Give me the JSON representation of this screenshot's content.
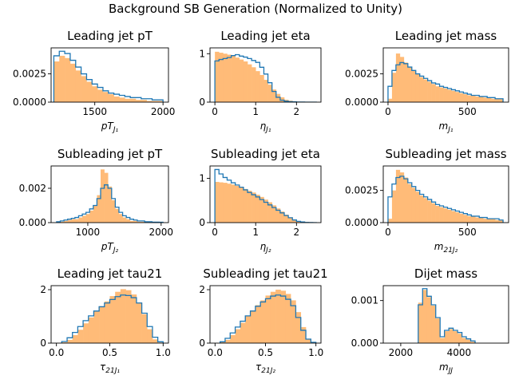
{
  "suptitle": "Background SB Generation (Normalized to Unity)",
  "colors": {
    "step": "#1f77b4",
    "fill": "#ffbb78",
    "axis": "#000000"
  },
  "chart_data": [
    {
      "type": "bar",
      "title": "Leading jet pT",
      "xlabel_base": "pT",
      "xlabel_sub": "J₁",
      "xlim": [
        1180,
        2040
      ],
      "ylim": [
        0,
        0.0048
      ],
      "xticks": [
        1500,
        2000
      ],
      "xtick_labels": [
        "1500",
        "2000"
      ],
      "yticks": [
        0,
        0.0025
      ],
      "ytick_labels": [
        "0.0000",
        "0.0025"
      ],
      "bin_edges": [
        1200,
        1240,
        1280,
        1320,
        1360,
        1400,
        1440,
        1480,
        1520,
        1560,
        1600,
        1640,
        1680,
        1720,
        1760,
        1800,
        1840,
        1880,
        1920,
        1960,
        2000
      ],
      "series": [
        {
          "name": "",
          "style": "step",
          "values": [
            0.0041,
            0.0045,
            0.0043,
            0.0037,
            0.0031,
            0.0025,
            0.002,
            0.0016,
            0.0013,
            0.001,
            0.0008,
            0.0007,
            0.0006,
            0.0005,
            0.0004,
            0.0004,
            0.0003,
            0.0003,
            0.0002,
            0.0002
          ]
        },
        {
          "name": "",
          "style": "fill",
          "values": [
            0.0036,
            0.0041,
            0.0039,
            0.0034,
            0.0028,
            0.0023,
            0.0018,
            0.0014,
            0.0011,
            0.0009,
            0.0007,
            0.0005,
            0.0004,
            0.0003,
            0.0003,
            0.0002,
            0.0002,
            0.0001,
            0.0001,
            0.0001
          ]
        }
      ]
    },
    {
      "type": "bar",
      "title": "Leading jet eta",
      "xlabel_base": "η",
      "xlabel_sub": "J₁",
      "xlim": [
        -0.12,
        2.6
      ],
      "ylim": [
        0,
        1.12
      ],
      "xticks": [
        0,
        1,
        2
      ],
      "xtick_labels": [
        "0",
        "1",
        "2"
      ],
      "yticks": [
        0,
        1
      ],
      "ytick_labels": [
        "0",
        "1"
      ],
      "bin_edges": [
        0,
        0.1,
        0.2,
        0.3,
        0.4,
        0.5,
        0.6,
        0.7,
        0.8,
        0.9,
        1.0,
        1.1,
        1.2,
        1.3,
        1.4,
        1.5,
        1.6,
        1.7,
        1.8,
        1.9,
        2.0,
        2.1,
        2.2,
        2.3,
        2.4,
        2.5
      ],
      "series": [
        {
          "name": "",
          "style": "step",
          "values": [
            0.85,
            0.88,
            0.9,
            0.92,
            0.96,
            0.98,
            0.95,
            0.93,
            0.9,
            0.86,
            0.82,
            0.72,
            0.58,
            0.4,
            0.22,
            0.1,
            0.04,
            0.02,
            0.01,
            0.005,
            0.002,
            0.001,
            0,
            0,
            0
          ]
        },
        {
          "name": "",
          "style": "fill",
          "values": [
            1.04,
            1.02,
            1.0,
            0.98,
            0.96,
            0.92,
            0.88,
            0.84,
            0.78,
            0.72,
            0.64,
            0.56,
            0.46,
            0.36,
            0.26,
            0.17,
            0.1,
            0.05,
            0.03,
            0.01,
            0.005,
            0.002,
            0,
            0,
            0
          ]
        }
      ]
    },
    {
      "type": "bar",
      "title": "Leading jet mass",
      "xlabel_base": "m",
      "xlabel_sub": "J₁",
      "xlim": [
        -30,
        760
      ],
      "ylim": [
        0,
        0.0048
      ],
      "xticks": [
        0,
        500
      ],
      "xtick_labels": [
        "0",
        "500"
      ],
      "yticks": [
        0,
        0.0025
      ],
      "ytick_labels": [
        "0.0000",
        "0.0025"
      ],
      "bin_edges": [
        0,
        25,
        50,
        75,
        100,
        125,
        150,
        175,
        200,
        225,
        250,
        275,
        300,
        325,
        350,
        375,
        400,
        425,
        450,
        475,
        500,
        525,
        550,
        575,
        600,
        625,
        650,
        675,
        700,
        725
      ],
      "series": [
        {
          "name": "",
          "style": "step",
          "values": [
            0.0014,
            0.0028,
            0.0033,
            0.0035,
            0.0034,
            0.0031,
            0.0028,
            0.0025,
            0.0023,
            0.0021,
            0.0019,
            0.0017,
            0.0016,
            0.0014,
            0.0013,
            0.0012,
            0.0011,
            0.001,
            0.0009,
            0.0008,
            0.0007,
            0.0006,
            0.0006,
            0.0005,
            0.0005,
            0.0004,
            0.0004,
            0.0003,
            0.0003
          ]
        },
        {
          "name": "",
          "style": "fill",
          "values": [
            0.0003,
            0.0026,
            0.0043,
            0.004,
            0.0035,
            0.0031,
            0.0028,
            0.0025,
            0.0022,
            0.002,
            0.0018,
            0.0016,
            0.0014,
            0.0013,
            0.0012,
            0.0011,
            0.001,
            0.0009,
            0.0008,
            0.0007,
            0.0006,
            0.0006,
            0.0005,
            0.0005,
            0.0004,
            0.0004,
            0.0003,
            0.0003,
            0.0003
          ]
        }
      ]
    },
    {
      "type": "bar",
      "title": "Subleading jet pT",
      "xlabel_base": "pT",
      "xlabel_sub": "J₂",
      "xlim": [
        500,
        2100
      ],
      "ylim": [
        0,
        0.0033
      ],
      "xticks": [
        1000,
        2000
      ],
      "xtick_labels": [
        "1000",
        "2000"
      ],
      "yticks": [
        0,
        0.002
      ],
      "ytick_labels": [
        "0.000",
        "0.002"
      ],
      "bin_edges": [
        575,
        625,
        675,
        725,
        775,
        825,
        875,
        925,
        975,
        1025,
        1075,
        1125,
        1175,
        1225,
        1275,
        1325,
        1375,
        1425,
        1475,
        1525,
        1575,
        1625,
        1675,
        1725,
        1775,
        1825,
        1875,
        1925,
        1975,
        2025
      ],
      "series": [
        {
          "name": "",
          "style": "step",
          "values": [
            5e-05,
            0.0001,
            0.00015,
            0.0002,
            0.00025,
            0.0003,
            0.0004,
            0.0005,
            0.0006,
            0.0008,
            0.001,
            0.0014,
            0.002,
            0.0022,
            0.002,
            0.0014,
            0.0009,
            0.0006,
            0.0004,
            0.0003,
            0.0002,
            0.00015,
            0.0001,
            0.0001,
            5e-05,
            5e-05,
            3e-05,
            3e-05,
            2e-05
          ]
        },
        {
          "name": "",
          "style": "fill",
          "values": [
            2e-05,
            5e-05,
            0.0001,
            0.00015,
            0.0002,
            0.0002,
            0.0003,
            0.0004,
            0.0005,
            0.0007,
            0.001,
            0.0016,
            0.0031,
            0.0029,
            0.0021,
            0.0013,
            0.0008,
            0.0005,
            0.0003,
            0.0002,
            0.0001,
            0.0001,
            5e-05,
            5e-05,
            3e-05,
            2e-05,
            1e-05,
            1e-05,
            1e-05
          ]
        }
      ]
    },
    {
      "type": "bar",
      "title": "Subleading jet eta",
      "xlabel_base": "η",
      "xlabel_sub": "J₂",
      "xlim": [
        -0.12,
        2.6
      ],
      "ylim": [
        0,
        1.28
      ],
      "xticks": [
        0,
        1,
        2
      ],
      "xtick_labels": [
        "0",
        "1",
        "2"
      ],
      "yticks": [
        0,
        1
      ],
      "ytick_labels": [
        "0",
        "1"
      ],
      "bin_edges": [
        0,
        0.1,
        0.2,
        0.3,
        0.4,
        0.5,
        0.6,
        0.7,
        0.8,
        0.9,
        1.0,
        1.1,
        1.2,
        1.3,
        1.4,
        1.5,
        1.6,
        1.7,
        1.8,
        1.9,
        2.0,
        2.1,
        2.2,
        2.3,
        2.4,
        2.5
      ],
      "series": [
        {
          "name": "",
          "style": "step",
          "values": [
            1.2,
            1.1,
            1.02,
            0.96,
            0.9,
            0.85,
            0.8,
            0.74,
            0.68,
            0.63,
            0.58,
            0.52,
            0.46,
            0.4,
            0.34,
            0.28,
            0.22,
            0.16,
            0.11,
            0.06,
            0.03,
            0.015,
            0.005,
            0.002,
            0
          ]
        },
        {
          "name": "",
          "style": "fill",
          "values": [
            0.92,
            0.91,
            0.9,
            0.88,
            0.86,
            0.83,
            0.8,
            0.76,
            0.72,
            0.68,
            0.63,
            0.58,
            0.52,
            0.46,
            0.39,
            0.32,
            0.25,
            0.18,
            0.12,
            0.07,
            0.03,
            0.015,
            0.005,
            0.002,
            0
          ]
        }
      ]
    },
    {
      "type": "bar",
      "title": "Subleading jet mass",
      "xlabel_base": "m",
      "xlabel_sub": "21J₂",
      "xlim": [
        -30,
        760
      ],
      "ylim": [
        0,
        0.0044
      ],
      "xticks": [
        0,
        500
      ],
      "xtick_labels": [
        "0",
        "500"
      ],
      "yticks": [
        0,
        0.0025
      ],
      "ytick_labels": [
        "0.0000",
        "0.0025"
      ],
      "bin_edges": [
        0,
        25,
        50,
        75,
        100,
        125,
        150,
        175,
        200,
        225,
        250,
        275,
        300,
        325,
        350,
        375,
        400,
        425,
        450,
        475,
        500,
        525,
        550,
        575,
        600,
        625,
        650,
        675,
        700,
        725
      ],
      "series": [
        {
          "name": "",
          "style": "step",
          "values": [
            0.002,
            0.003,
            0.0035,
            0.0036,
            0.0034,
            0.0031,
            0.0028,
            0.0025,
            0.0022,
            0.002,
            0.0018,
            0.0016,
            0.0014,
            0.0013,
            0.0012,
            0.0011,
            0.001,
            0.0009,
            0.0008,
            0.0007,
            0.0006,
            0.0005,
            0.0005,
            0.0004,
            0.0004,
            0.0003,
            0.0003,
            0.0003,
            0.0002
          ]
        },
        {
          "name": "",
          "style": "fill",
          "values": [
            0.0003,
            0.0025,
            0.0041,
            0.0039,
            0.0035,
            0.003,
            0.0027,
            0.0024,
            0.0021,
            0.0019,
            0.0017,
            0.0015,
            0.0013,
            0.0012,
            0.0011,
            0.001,
            0.0009,
            0.0008,
            0.0007,
            0.0006,
            0.0005,
            0.0005,
            0.0004,
            0.0004,
            0.0003,
            0.0003,
            0.0003,
            0.0002,
            0.0002
          ]
        }
      ]
    },
    {
      "type": "bar",
      "title": "Leading jet tau21",
      "xlabel_base": "τ",
      "xlabel_sub": "21J₁",
      "xlim": [
        -0.05,
        1.05
      ],
      "ylim": [
        0,
        2.15
      ],
      "xticks": [
        0.0,
        0.5,
        1.0
      ],
      "xtick_labels": [
        "0.0",
        "0.5",
        "1.0"
      ],
      "yticks": [
        0,
        2
      ],
      "ytick_labels": [
        "0",
        "2"
      ],
      "bin_edges": [
        0.05,
        0.1,
        0.15,
        0.2,
        0.25,
        0.3,
        0.35,
        0.4,
        0.45,
        0.5,
        0.55,
        0.6,
        0.65,
        0.7,
        0.75,
        0.8,
        0.85,
        0.9,
        0.95,
        1.0
      ],
      "series": [
        {
          "name": "",
          "style": "step",
          "values": [
            0.06,
            0.2,
            0.4,
            0.62,
            0.84,
            1.02,
            1.2,
            1.36,
            1.5,
            1.63,
            1.74,
            1.8,
            1.78,
            1.7,
            1.5,
            1.12,
            0.62,
            0.22,
            0.05
          ]
        },
        {
          "name": "",
          "style": "fill",
          "values": [
            0.03,
            0.12,
            0.3,
            0.5,
            0.74,
            0.96,
            1.18,
            1.38,
            1.56,
            1.76,
            1.92,
            2.02,
            1.98,
            1.82,
            1.52,
            1.08,
            0.52,
            0.14,
            0.02
          ]
        }
      ]
    },
    {
      "type": "bar",
      "title": "Subleading jet tau21",
      "xlabel_base": "τ",
      "xlabel_sub": "21J₂",
      "xlim": [
        -0.05,
        1.05
      ],
      "ylim": [
        0,
        2.15
      ],
      "xticks": [
        0.0,
        0.5,
        1.0
      ],
      "xtick_labels": [
        "0.0",
        "0.5",
        "1.0"
      ],
      "yticks": [
        0,
        2
      ],
      "ytick_labels": [
        "0",
        "2"
      ],
      "bin_edges": [
        0.05,
        0.1,
        0.15,
        0.2,
        0.25,
        0.3,
        0.35,
        0.4,
        0.45,
        0.5,
        0.55,
        0.6,
        0.65,
        0.7,
        0.75,
        0.8,
        0.85,
        0.9,
        0.95,
        1.0
      ],
      "series": [
        {
          "name": "",
          "style": "step",
          "values": [
            0.05,
            0.18,
            0.38,
            0.6,
            0.82,
            1.02,
            1.2,
            1.38,
            1.54,
            1.66,
            1.76,
            1.8,
            1.76,
            1.64,
            1.4,
            0.96,
            0.48,
            0.15,
            0.03
          ]
        },
        {
          "name": "",
          "style": "fill",
          "values": [
            0.03,
            0.12,
            0.3,
            0.52,
            0.76,
            1.0,
            1.22,
            1.42,
            1.6,
            1.78,
            1.92,
            2.0,
            1.96,
            1.84,
            1.6,
            1.16,
            0.6,
            0.16,
            0.02
          ]
        }
      ]
    },
    {
      "type": "bar",
      "title": "Dijet mass",
      "xlabel_base": "m",
      "xlabel_sub": "JJ",
      "xlim": [
        1400,
        5700
      ],
      "ylim": [
        0,
        0.00135
      ],
      "xticks": [
        2000,
        4000
      ],
      "xtick_labels": [
        "2000",
        "4000"
      ],
      "yticks": [
        0,
        0.001
      ],
      "ytick_labels": [
        "0.000",
        "0.001"
      ],
      "bin_edges": [
        2600,
        2750,
        2900,
        3050,
        3200,
        3350,
        3500,
        3650,
        3800,
        3950,
        4100,
        4250,
        4400,
        4550
      ],
      "series": [
        {
          "name": "",
          "style": "step",
          "values": [
            0.0009,
            0.00128,
            0.0011,
            0.0009,
            0.0006,
            0.00015,
            0.0003,
            0.00035,
            0.0003,
            0.00025,
            0.00015,
            0.0001,
            5e-05
          ]
        },
        {
          "name": "",
          "style": "fill",
          "values": [
            0.00095,
            0.00125,
            0.00108,
            0.00088,
            0.00058,
            0.00012,
            0.00028,
            0.00033,
            0.00028,
            0.00022,
            0.00012,
            8e-05,
            3e-05
          ]
        }
      ]
    }
  ]
}
